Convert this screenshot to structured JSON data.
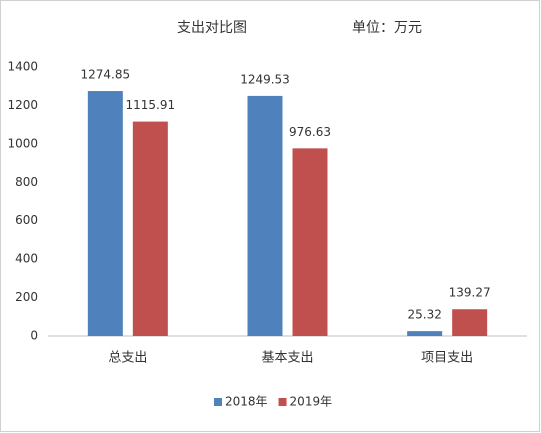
{
  "chart_data": {
    "type": "bar",
    "title": "支出对比图",
    "subtitle": "单位：万元",
    "categories": [
      "总支出",
      "基本支出",
      "项目支出"
    ],
    "series": [
      {
        "name": "2018年",
        "color": "#4f81bd",
        "values": [
          1274.85,
          1249.53,
          25.32
        ]
      },
      {
        "name": "2019年",
        "color": "#c0504d",
        "values": [
          1115.91,
          976.63,
          139.27
        ]
      }
    ],
    "ylim": [
      0,
      1400
    ],
    "yticks": [
      0,
      200,
      400,
      600,
      800,
      1000,
      1200,
      1400
    ],
    "grid": false,
    "legend": "bottom"
  }
}
